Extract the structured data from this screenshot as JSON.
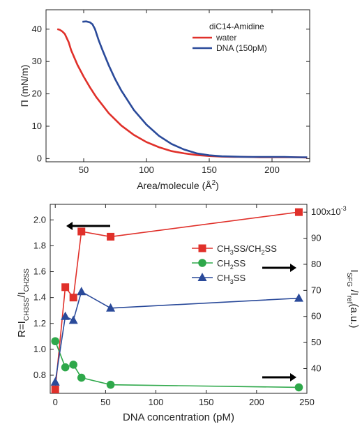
{
  "charts": [
    {
      "type": "line",
      "xlabel": "Area/molecule (Å²)",
      "ylabel": "Π (mN/m)",
      "xlim": [
        20,
        230
      ],
      "ylim": [
        -1,
        46
      ],
      "xticks": [
        50,
        100,
        150,
        200
      ],
      "yticks": [
        0,
        10,
        20,
        30,
        40
      ],
      "legend": {
        "title": "diC14-Amidine",
        "placement": "top-right",
        "entries": [
          "water",
          "DNA (150pM)"
        ]
      },
      "series": [
        {
          "name": "water",
          "color": "#e0302a",
          "x": [
            29,
            31,
            33,
            35,
            38,
            40,
            45,
            50,
            55,
            60,
            70,
            80,
            90,
            100,
            110,
            120,
            130,
            140,
            150,
            160,
            170,
            180,
            190,
            200,
            210,
            220,
            228
          ],
          "y": [
            40,
            39.8,
            39.3,
            38.5,
            36,
            33.5,
            29,
            25.3,
            22,
            19,
            14,
            10.2,
            7.3,
            5.1,
            3.5,
            2.3,
            1.6,
            1.1,
            0.8,
            0.6,
            0.5,
            0.5,
            0.4,
            0.4,
            0.4,
            0.4,
            0.3
          ]
        },
        {
          "name": "DNA (150pM)",
          "color": "#2a4a9a",
          "x": [
            49,
            52,
            55,
            57,
            59,
            62,
            65,
            70,
            75,
            80,
            90,
            100,
            110,
            120,
            130,
            140,
            150,
            160,
            170,
            180,
            190,
            200,
            210,
            220,
            228
          ],
          "y": [
            42.3,
            42.4,
            42.1,
            41.5,
            40,
            36.5,
            33.5,
            28.8,
            24.6,
            21,
            15,
            10.5,
            7,
            4.5,
            2.8,
            1.6,
            1,
            0.7,
            0.6,
            0.5,
            0.5,
            0.5,
            0.5,
            0.4,
            0.4
          ]
        }
      ]
    },
    {
      "type": "line",
      "xlabel": "DNA concentration (pM)",
      "ylabel": "R=I",
      "ylabel_sub1": "CH3SS",
      "ylabel_mid": "/I",
      "ylabel_sub2": "CH2SS",
      "y2label": "I",
      "y2label_sub1": "SFG",
      "y2label_mid": " /I",
      "y2label_sub2": "ref",
      "y2label_end": "(a.u.)",
      "xlim": [
        -5,
        250
      ],
      "xticks": [
        0,
        50,
        100,
        150,
        200,
        250
      ],
      "ylim": [
        0.66,
        2.12
      ],
      "yticks": [
        0.8,
        1.0,
        1.2,
        1.4,
        1.6,
        1.8,
        2.0
      ],
      "y2lim": [
        30.5,
        103
      ],
      "y2ticks": [
        40,
        50,
        60,
        70,
        80,
        90,
        100
      ],
      "y2_exponent": "x10",
      "y2_exponent_power": "-3",
      "legend": {
        "placement": "right",
        "entries": [
          {
            "label": "CH",
            "sub": "3",
            "label2": "SS/CH",
            "sub2": "2",
            "label3": "SS"
          },
          {
            "label": "CH",
            "sub": "2",
            "label2": "SS"
          },
          {
            "label": "CH",
            "sub": "3",
            "label2": "SS"
          }
        ]
      },
      "series": [
        {
          "name": "CH3SS/CH2SS",
          "axis": "left",
          "marker": "square",
          "color": "#e0302a",
          "x": [
            0,
            10,
            18,
            26,
            55,
            242
          ],
          "y": [
            0.69,
            1.48,
            1.4,
            1.91,
            1.87,
            2.06
          ]
        },
        {
          "name": "CH2SS",
          "axis": "right",
          "marker": "circle",
          "color": "#2ea84a",
          "x": [
            0,
            10,
            18,
            26,
            55,
            242
          ],
          "y": [
            50.5,
            40.5,
            41.5,
            36.5,
            33.8,
            32.8
          ]
        },
        {
          "name": "CH3SS",
          "axis": "right",
          "marker": "triangle",
          "color": "#2a4a9a",
          "x": [
            0,
            10,
            18,
            26,
            55,
            242
          ],
          "y": [
            34.8,
            60,
            58.5,
            69.5,
            63.2,
            67
          ]
        }
      ],
      "arrows": [
        {
          "direction": "left",
          "axis": "left"
        },
        {
          "direction": "right",
          "axis": "right"
        },
        {
          "direction": "right",
          "axis": "right"
        }
      ]
    }
  ]
}
